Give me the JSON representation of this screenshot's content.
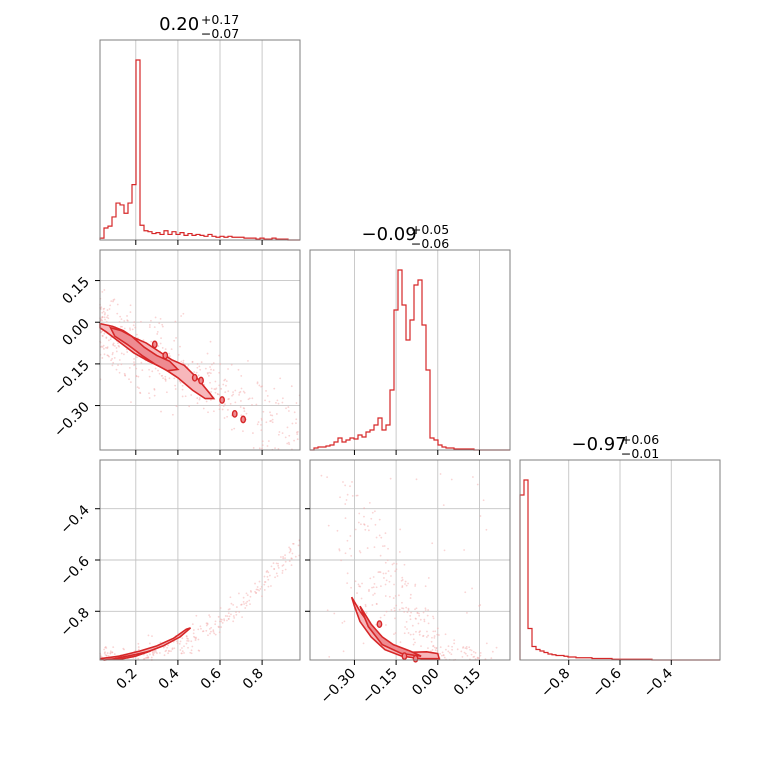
{
  "chart_data": {
    "type": "corner",
    "color": "#d62728",
    "titles": [
      {
        "value": "0.20",
        "plus": "+0.17",
        "minus": "−0.07"
      },
      {
        "value": "−0.09",
        "plus": "+0.05",
        "minus": "−0.06"
      },
      {
        "value": "−0.97",
        "plus": "+0.06",
        "minus": "−0.01"
      }
    ],
    "parameters": [
      {
        "range": [
          0.03,
          0.98
        ],
        "ticks": [
          0.2,
          0.4,
          0.6,
          0.8
        ],
        "tick_labels": [
          "0.2",
          "0.4",
          "0.6",
          "0.8"
        ]
      },
      {
        "range": [
          -0.46,
          0.26
        ],
        "ticks": [
          -0.3,
          -0.15,
          0.0,
          0.15
        ],
        "tick_labels": [
          "−0.30",
          "−0.15",
          "0.00",
          "0.15"
        ]
      },
      {
        "range": [
          -0.99,
          -0.21
        ],
        "ticks": [
          -0.8,
          -0.6,
          -0.4
        ],
        "tick_labels": [
          "−0.8",
          "−0.6",
          "−0.4"
        ]
      }
    ],
    "histograms": [
      {
        "bins": [
          0.03,
          0.049,
          0.068,
          0.087,
          0.106,
          0.125,
          0.144,
          0.163,
          0.182,
          0.201,
          0.22,
          0.239,
          0.258,
          0.277,
          0.296,
          0.315,
          0.334,
          0.353,
          0.372,
          0.391,
          0.41,
          0.429,
          0.448,
          0.467,
          0.486,
          0.505,
          0.524,
          0.543,
          0.562,
          0.581,
          0.6,
          0.619,
          0.638,
          0.657,
          0.676,
          0.695,
          0.714,
          0.733,
          0.752,
          0.771,
          0.79,
          0.809,
          0.828,
          0.847,
          0.866,
          0.885,
          0.904,
          0.923,
          0.942,
          0.961,
          0.98
        ],
        "counts": [
          2,
          13,
          15,
          25,
          40,
          38,
          29,
          40,
          60,
          195,
          16,
          10,
          9,
          7,
          8,
          6,
          10,
          6,
          9,
          6,
          8,
          5,
          7,
          5,
          6,
          5,
          4,
          6,
          4,
          3,
          4,
          3,
          4,
          3,
          3,
          3,
          2,
          2,
          2,
          1,
          2,
          1,
          1,
          2,
          1,
          1,
          1,
          0,
          0,
          0
        ]
      },
      {
        "bins": [
          -0.46,
          -0.4456,
          -0.4312,
          -0.4168,
          -0.4024,
          -0.388,
          -0.3736,
          -0.3592,
          -0.3448,
          -0.3304,
          -0.316,
          -0.3016,
          -0.2872,
          -0.2728,
          -0.2584,
          -0.244,
          -0.2296,
          -0.2152,
          -0.2008,
          -0.1864,
          -0.172,
          -0.1576,
          -0.1432,
          -0.1288,
          -0.1144,
          -0.1,
          -0.0856,
          -0.0712,
          -0.0568,
          -0.0424,
          -0.028,
          -0.0136,
          0.0008,
          0.0152,
          0.0296,
          0.044,
          0.0584,
          0.0728,
          0.0872,
          0.1016,
          0.116,
          0.1304,
          0.1448,
          0.1592,
          0.1736,
          0.188,
          0.2024,
          0.2168,
          0.2312,
          0.2456,
          0.26
        ],
        "counts": [
          0,
          2,
          3,
          3,
          4,
          5,
          8,
          12,
          8,
          10,
          12,
          11,
          15,
          13,
          18,
          20,
          25,
          32,
          20,
          25,
          60,
          140,
          180,
          145,
          110,
          130,
          165,
          170,
          125,
          80,
          12,
          10,
          5,
          3,
          2,
          2,
          1,
          1,
          1,
          1,
          1,
          0,
          0,
          0,
          0,
          0,
          0,
          0,
          0,
          0
        ]
      },
      {
        "bins": [
          -0.99,
          -0.9744,
          -0.9588,
          -0.9432,
          -0.9276,
          -0.912,
          -0.8964,
          -0.8808,
          -0.8652,
          -0.8496,
          -0.834,
          -0.8184,
          -0.8028,
          -0.7872,
          -0.7716,
          -0.756,
          -0.7404,
          -0.7248,
          -0.7092,
          -0.6936,
          -0.678,
          -0.6624,
          -0.6468,
          -0.6312,
          -0.6156,
          -0.6,
          -0.5844,
          -0.5688,
          -0.5532,
          -0.5376,
          -0.522,
          -0.5064,
          -0.4908,
          -0.4752,
          -0.4596,
          -0.444,
          -0.4284,
          -0.4128,
          -0.3972,
          -0.3816,
          -0.366,
          -0.3504,
          -0.3348,
          -0.3192,
          -0.3036,
          -0.288,
          -0.2724,
          -0.2568,
          -0.2412,
          -0.2256,
          -0.21
        ],
        "counts": [
          220,
          240,
          42,
          18,
          14,
          12,
          10,
          8,
          7,
          6,
          6,
          5,
          4,
          4,
          3,
          3,
          3,
          3,
          2,
          2,
          2,
          2,
          2,
          1,
          1,
          1,
          1,
          1,
          1,
          1,
          1,
          1,
          1,
          0,
          0,
          0,
          0,
          0,
          0,
          0,
          0,
          0,
          0,
          0,
          0,
          0,
          0,
          0,
          0,
          0
        ]
      }
    ],
    "pairs": [
      {
        "i": 0,
        "j": 1,
        "outer_contour": [
          [
            0.03,
            -0.005
          ],
          [
            0.09,
            -0.015
          ],
          [
            0.14,
            -0.03
          ],
          [
            0.19,
            -0.055
          ],
          [
            0.25,
            -0.075
          ],
          [
            0.31,
            -0.105
          ],
          [
            0.37,
            -0.135
          ],
          [
            0.43,
            -0.155
          ],
          [
            0.49,
            -0.2
          ],
          [
            0.55,
            -0.255
          ],
          [
            0.57,
            -0.275
          ],
          [
            0.53,
            -0.275
          ],
          [
            0.47,
            -0.245
          ],
          [
            0.4,
            -0.2
          ],
          [
            0.33,
            -0.165
          ],
          [
            0.26,
            -0.14
          ],
          [
            0.19,
            -0.11
          ],
          [
            0.12,
            -0.07
          ],
          [
            0.06,
            -0.035
          ],
          [
            0.03,
            -0.02
          ]
        ],
        "inner_contour": [
          [
            0.08,
            -0.02
          ],
          [
            0.13,
            -0.03
          ],
          [
            0.18,
            -0.05
          ],
          [
            0.24,
            -0.09
          ],
          [
            0.3,
            -0.12
          ],
          [
            0.36,
            -0.14
          ],
          [
            0.4,
            -0.17
          ],
          [
            0.35,
            -0.175
          ],
          [
            0.29,
            -0.15
          ],
          [
            0.23,
            -0.12
          ],
          [
            0.16,
            -0.08
          ],
          [
            0.1,
            -0.05
          ]
        ],
        "islands": [
          [
            0.29,
            -0.08
          ],
          [
            0.34,
            -0.12
          ],
          [
            0.48,
            -0.2
          ],
          [
            0.51,
            -0.21
          ],
          [
            0.61,
            -0.28
          ],
          [
            0.67,
            -0.33
          ],
          [
            0.71,
            -0.35
          ]
        ],
        "cloud": {
          "center": [
            [
              0.2,
              -0.05
            ],
            [
              0.85,
              -0.35
            ]
          ],
          "spread_y": 0.13,
          "n": 500
        }
      },
      {
        "i": 0,
        "j": 2,
        "outer_contour": [
          [
            0.03,
            -0.985
          ],
          [
            0.12,
            -0.975
          ],
          [
            0.22,
            -0.955
          ],
          [
            0.3,
            -0.935
          ],
          [
            0.38,
            -0.905
          ],
          [
            0.44,
            -0.87
          ],
          [
            0.46,
            -0.865
          ],
          [
            0.41,
            -0.9
          ],
          [
            0.33,
            -0.935
          ],
          [
            0.25,
            -0.96
          ],
          [
            0.15,
            -0.98
          ],
          [
            0.05,
            -0.99
          ]
        ],
        "inner_contour": [
          [
            0.1,
            -0.985
          ],
          [
            0.2,
            -0.968
          ],
          [
            0.27,
            -0.955
          ],
          [
            0.2,
            -0.975
          ],
          [
            0.12,
            -0.988
          ]
        ],
        "islands": [],
        "cloud": {
          "curve": "exp",
          "n": 350
        }
      },
      {
        "i": 1,
        "j": 2,
        "outer_contour": [
          [
            -0.31,
            -0.745
          ],
          [
            -0.28,
            -0.8
          ],
          [
            -0.24,
            -0.86
          ],
          [
            -0.2,
            -0.91
          ],
          [
            -0.16,
            -0.94
          ],
          [
            -0.1,
            -0.96
          ],
          [
            -0.04,
            -0.958
          ],
          [
            0.0,
            -0.965
          ],
          [
            0.005,
            -0.985
          ],
          [
            -0.06,
            -0.985
          ],
          [
            -0.13,
            -0.975
          ],
          [
            -0.19,
            -0.95
          ],
          [
            -0.24,
            -0.9
          ],
          [
            -0.28,
            -0.84
          ],
          [
            -0.3,
            -0.78
          ]
        ],
        "inner_contour": [
          [
            -0.28,
            -0.78
          ],
          [
            -0.24,
            -0.85
          ],
          [
            -0.2,
            -0.9
          ],
          [
            -0.16,
            -0.93
          ],
          [
            -0.1,
            -0.955
          ],
          [
            -0.06,
            -0.975
          ],
          [
            -0.13,
            -0.965
          ],
          [
            -0.2,
            -0.93
          ],
          [
            -0.25,
            -0.86
          ]
        ],
        "islands": [
          [
            -0.21,
            -0.85
          ],
          [
            -0.12,
            -0.975
          ],
          [
            -0.08,
            -0.985
          ]
        ],
        "cloud": {
          "n": 350
        }
      }
    ]
  }
}
